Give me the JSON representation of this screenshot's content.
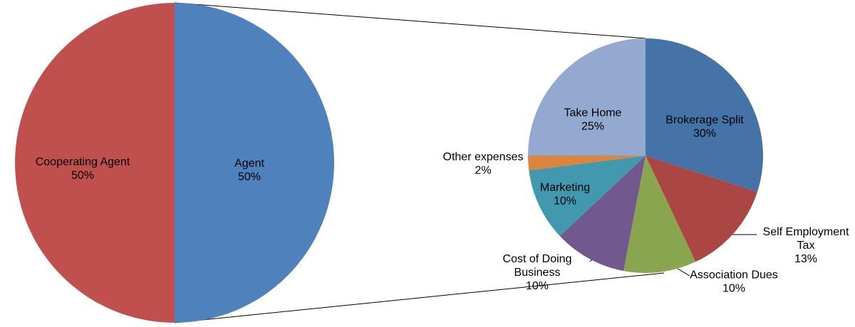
{
  "chart_data": [
    {
      "type": "pie",
      "categories": [
        "Cooperating Agent",
        "Agent"
      ],
      "values": [
        50,
        50
      ],
      "labels": [
        "50%",
        "50%"
      ],
      "colors": [
        "#C0504D",
        "#4F81BD"
      ]
    },
    {
      "type": "pie",
      "categories": [
        "Brokerage Split",
        "Self Employment Tax",
        "Association Dues",
        "Cost of Doing Business",
        "Marketing",
        "Other expenses",
        "Take Home"
      ],
      "display_lines": [
        [
          "Brokerage Split",
          "30%"
        ],
        [
          "Self Employment",
          "Tax",
          "13%"
        ],
        [
          "Association Dues",
          "10%"
        ],
        [
          "Cost of Doing",
          "Business",
          "10%"
        ],
        [
          "Marketing",
          "10%"
        ],
        [
          "Other expenses",
          "2%"
        ],
        [
          "Take Home",
          "25%"
        ]
      ],
      "values": [
        30,
        13,
        10,
        10,
        10,
        2,
        25
      ],
      "colors": [
        "#4572A7",
        "#AA4643",
        "#89A54E",
        "#71588F",
        "#4198AF",
        "#DB843D",
        "#93A9CF"
      ]
    }
  ]
}
